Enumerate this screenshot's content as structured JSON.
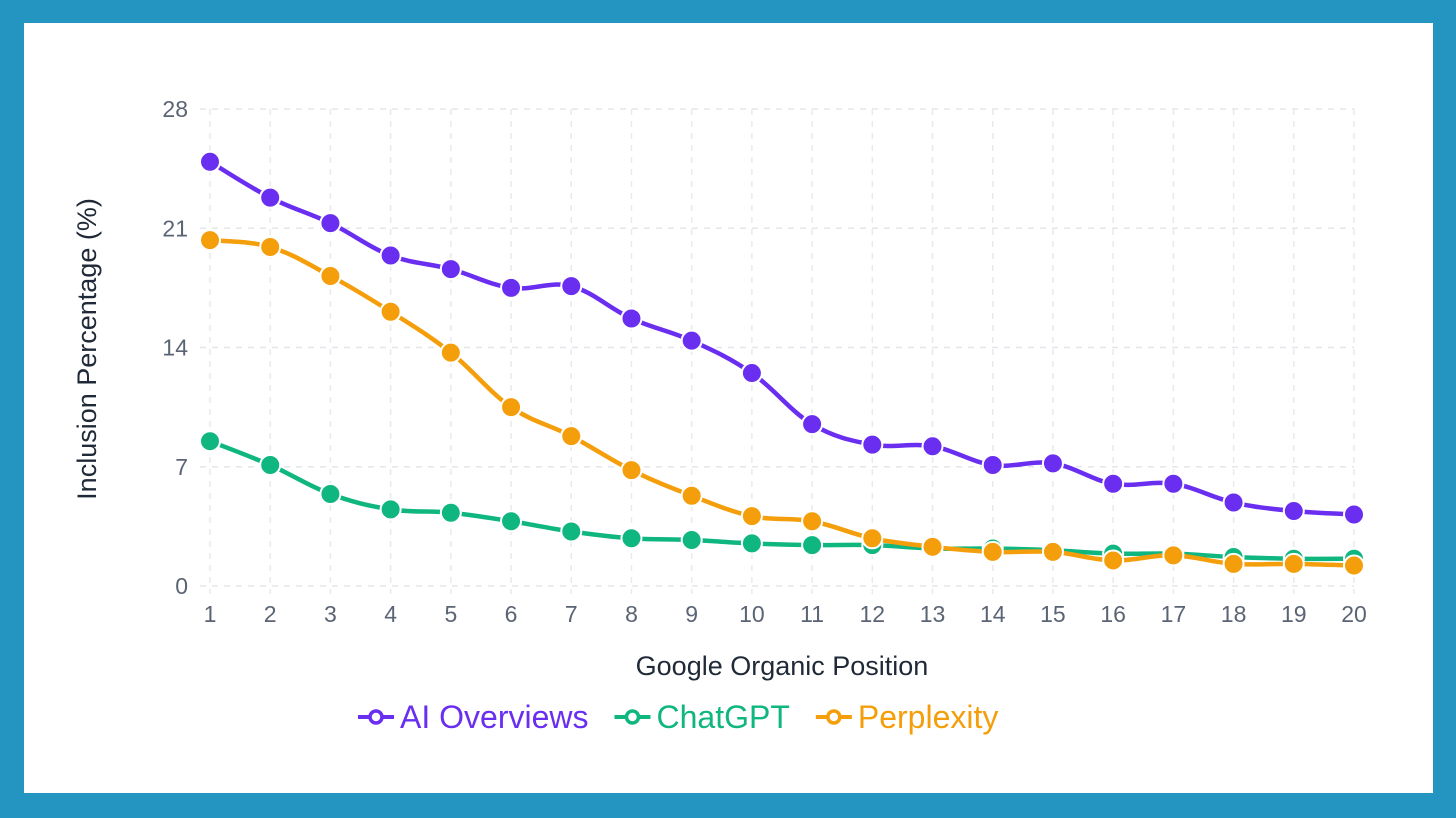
{
  "chart_data": {
    "type": "line",
    "title": "",
    "xlabel": "Google Organic Position",
    "ylabel": "Inclusion Percentage (%)",
    "categories": [
      1,
      2,
      3,
      4,
      5,
      6,
      7,
      8,
      9,
      10,
      11,
      12,
      13,
      14,
      15,
      16,
      17,
      18,
      19,
      20
    ],
    "ylim": [
      0,
      28
    ],
    "yticks": [
      0,
      7,
      14,
      21,
      28
    ],
    "grid": true,
    "legend_position": "bottom",
    "series": [
      {
        "name": "AI Overviews",
        "color": "#6a2ef0",
        "values": [
          24.9,
          22.8,
          21.3,
          19.4,
          18.6,
          17.5,
          17.6,
          15.7,
          14.4,
          12.5,
          9.5,
          8.3,
          8.2,
          7.1,
          7.2,
          6.0,
          6.0,
          4.9,
          4.4,
          4.2
        ]
      },
      {
        "name": "ChatGPT",
        "color": "#10b67f",
        "values": [
          8.5,
          7.1,
          5.4,
          4.5,
          4.3,
          3.8,
          3.2,
          2.8,
          2.7,
          2.5,
          2.4,
          2.4,
          2.2,
          2.2,
          2.1,
          1.9,
          1.9,
          1.7,
          1.6,
          1.6
        ]
      },
      {
        "name": "Perplexity",
        "color": "#f59e0b",
        "values": [
          20.3,
          19.9,
          18.2,
          16.1,
          13.7,
          10.5,
          8.8,
          6.8,
          5.3,
          4.1,
          3.8,
          2.8,
          2.3,
          2.0,
          2.0,
          1.5,
          1.8,
          1.3,
          1.3,
          1.2
        ]
      }
    ]
  }
}
